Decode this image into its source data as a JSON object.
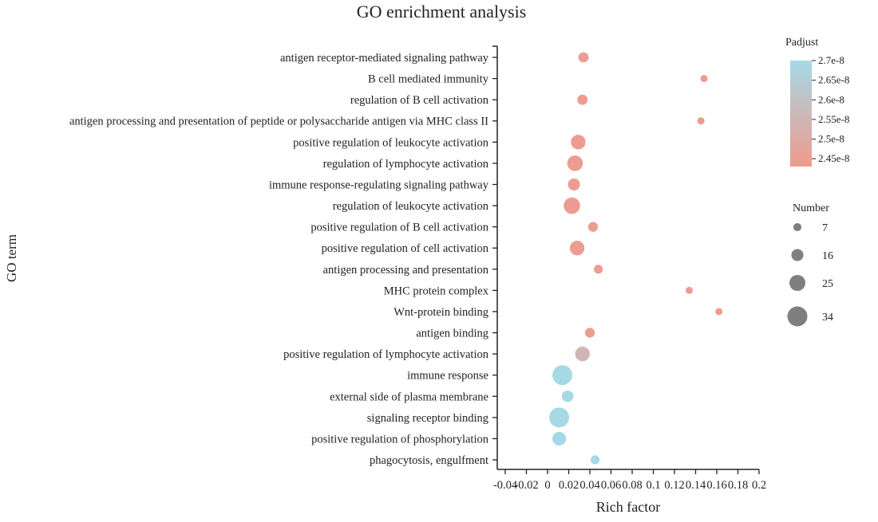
{
  "chart_data": {
    "type": "scatter",
    "title": "GO enrichment analysis",
    "xlabel": "Rich factor",
    "ylabel": "GO term",
    "xlim": [
      -0.04,
      0.2
    ],
    "xticks": [
      "-0.04",
      "-0.02",
      "0",
      "0.02",
      "0.04",
      "0.06",
      "0.08",
      "0.1",
      "0.12",
      "0.14",
      "0.16",
      "0.18",
      "0.2"
    ],
    "categories": [
      "antigen receptor-mediated signaling pathway",
      "B cell mediated immunity",
      "regulation of B cell activation",
      "antigen processing and presentation of peptide or polysaccharide antigen via MHC class II",
      "positive regulation of leukocyte activation",
      "regulation of lymphocyte activation",
      "immune response-regulating signaling pathway",
      "regulation of leukocyte activation",
      "positive regulation of B cell activation",
      "positive regulation of cell activation",
      "antigen processing and presentation",
      "MHC protein complex",
      "Wnt-protein binding",
      "antigen binding",
      "positive regulation of lymphocyte activation",
      "immune response",
      "external side of plasma membrane",
      "signaling receptor binding",
      "positive regulation of phosphorylation",
      "phagocytosis, engulfment"
    ],
    "points": [
      {
        "term": "antigen receptor-mediated signaling pathway",
        "x": 0.034,
        "number": 12,
        "padjust": 2.44e-08
      },
      {
        "term": "B cell mediated immunity",
        "x": 0.148,
        "number": 5,
        "padjust": 2.44e-08
      },
      {
        "term": "regulation of B cell activation",
        "x": 0.033,
        "number": 12,
        "padjust": 2.44e-08
      },
      {
        "term": "antigen processing and presentation of peptide or polysaccharide antigen via MHC class II",
        "x": 0.145,
        "number": 5,
        "padjust": 2.44e-08
      },
      {
        "term": "positive regulation of leukocyte activation",
        "x": 0.029,
        "number": 22,
        "padjust": 2.44e-08
      },
      {
        "term": "regulation of lymphocyte activation",
        "x": 0.026,
        "number": 24,
        "padjust": 2.44e-08
      },
      {
        "term": "immune response-regulating signaling pathway",
        "x": 0.025,
        "number": 16,
        "padjust": 2.44e-08
      },
      {
        "term": "regulation of leukocyte activation",
        "x": 0.023,
        "number": 26,
        "padjust": 2.44e-08
      },
      {
        "term": "positive regulation of B cell activation",
        "x": 0.043,
        "number": 11,
        "padjust": 2.44e-08
      },
      {
        "term": "positive regulation of cell activation",
        "x": 0.028,
        "number": 22,
        "padjust": 2.44e-08
      },
      {
        "term": "antigen processing and presentation",
        "x": 0.048,
        "number": 9,
        "padjust": 2.44e-08
      },
      {
        "term": "MHC protein complex",
        "x": 0.134,
        "number": 5,
        "padjust": 2.44e-08
      },
      {
        "term": "Wnt-protein binding",
        "x": 0.162,
        "number": 5,
        "padjust": 2.44e-08
      },
      {
        "term": "antigen binding",
        "x": 0.04,
        "number": 11,
        "padjust": 2.44e-08
      },
      {
        "term": "positive regulation of lymphocyte activation",
        "x": 0.033,
        "number": 22,
        "padjust": 2.55e-08
      },
      {
        "term": "immune response",
        "x": 0.014,
        "number": 34,
        "padjust": 2.7e-08
      },
      {
        "term": "external side of plasma membrane",
        "x": 0.019,
        "number": 15,
        "padjust": 2.7e-08
      },
      {
        "term": "signaling receptor binding",
        "x": 0.011,
        "number": 34,
        "padjust": 2.7e-08
      },
      {
        "term": "positive regulation of phosphorylation",
        "x": 0.011,
        "number": 20,
        "padjust": 2.7e-08
      },
      {
        "term": "phagocytosis, engulfment",
        "x": 0.045,
        "number": 9,
        "padjust": 2.7e-08
      }
    ],
    "color_legend": {
      "title": "Padjust",
      "labels": [
        "2.7e-8",
        "2.65e-8",
        "2.6e-8",
        "2.55e-8",
        "2.5e-8",
        "2.45e-8"
      ],
      "range": [
        2.43e-08,
        2.7e-08
      ],
      "low_color": "#ef9a8d",
      "high_color": "#a6d9e6"
    },
    "size_legend": {
      "title": "Number",
      "values": [
        7,
        16,
        25,
        34
      ]
    },
    "legend_position": "right",
    "grid": false
  }
}
